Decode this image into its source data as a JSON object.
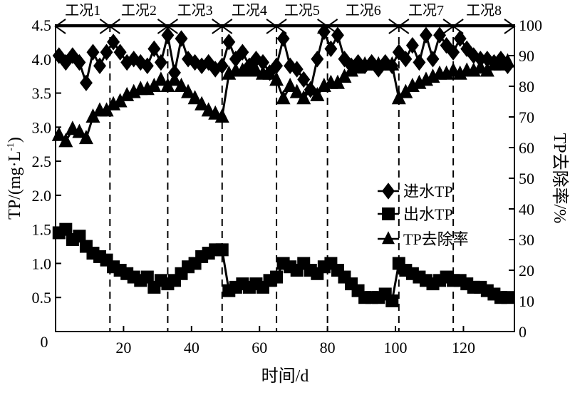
{
  "chart_data": {
    "type": "line",
    "xlabel": "时间/d",
    "ylabel_left": "TP/(mg·L",
    "ylabel_left_sup": "-1",
    "ylabel_left_end": ")",
    "ylabel_right": "TP去除率/%",
    "xlim": [
      0,
      135
    ],
    "ylim_left": [
      0,
      4.5
    ],
    "ylim_right": [
      0,
      100
    ],
    "x_ticks": [
      20,
      40,
      60,
      80,
      100,
      120
    ],
    "origin_label": "0",
    "y_left_ticks": [
      "0.5",
      "1.0",
      "1.5",
      "2.0",
      "2.5",
      "3.0",
      "3.5",
      "4.0",
      "4.5"
    ],
    "y_right_ticks": [
      "0",
      "10",
      "20",
      "30",
      "40",
      "50",
      "60",
      "70",
      "80",
      "90",
      "100"
    ],
    "grid": false,
    "legend_placement": "right-middle",
    "phase_dividers": [
      16,
      33,
      49,
      65,
      80,
      101,
      117
    ],
    "phases": [
      "工况1",
      "工况2",
      "工况3",
      "工况4",
      "工况5",
      "工况6",
      "工况7",
      "工况8"
    ],
    "x": [
      1,
      3,
      5,
      7,
      9,
      11,
      13,
      15,
      17,
      19,
      21,
      23,
      25,
      27,
      29,
      31,
      33,
      35,
      37,
      39,
      41,
      43,
      45,
      47,
      49,
      51,
      53,
      55,
      57,
      59,
      61,
      63,
      65,
      67,
      69,
      71,
      73,
      75,
      77,
      79,
      81,
      83,
      85,
      87,
      89,
      91,
      93,
      95,
      97,
      99,
      101,
      103,
      105,
      107,
      109,
      111,
      113,
      115,
      117,
      119,
      121,
      123,
      125,
      127,
      129,
      131,
      133
    ],
    "series": [
      {
        "name": "进水TP",
        "axis": "left",
        "marker": "diamond",
        "values": [
          4.05,
          3.95,
          4.05,
          3.95,
          3.65,
          4.1,
          3.9,
          4.1,
          4.25,
          4.1,
          3.95,
          4.0,
          3.95,
          3.9,
          4.15,
          3.95,
          4.35,
          3.8,
          4.3,
          4.0,
          3.95,
          3.9,
          3.95,
          3.85,
          3.9,
          4.25,
          4.0,
          4.1,
          3.9,
          4.0,
          3.95,
          3.8,
          3.9,
          4.3,
          3.9,
          3.85,
          3.7,
          3.55,
          4.0,
          4.4,
          4.15,
          4.35,
          4.0,
          3.9,
          3.95,
          3.9,
          3.95,
          3.85,
          3.95,
          3.9,
          4.1,
          4.0,
          4.2,
          3.95,
          4.35,
          4.0,
          4.35,
          4.2,
          4.1,
          4.3,
          4.15,
          4.05,
          4.0,
          4.0,
          3.95,
          4.0,
          3.9
        ]
      },
      {
        "name": "出水TP",
        "axis": "left",
        "marker": "square",
        "values": [
          1.45,
          1.5,
          1.35,
          1.4,
          1.25,
          1.15,
          1.1,
          1.05,
          0.95,
          0.9,
          0.85,
          0.8,
          0.75,
          0.8,
          0.65,
          0.75,
          0.7,
          0.75,
          0.85,
          0.95,
          1.0,
          1.1,
          1.15,
          1.2,
          1.2,
          0.6,
          0.65,
          0.7,
          0.65,
          0.7,
          0.65,
          0.75,
          0.8,
          1.0,
          0.95,
          0.9,
          1.0,
          0.9,
          0.85,
          0.95,
          1.0,
          0.9,
          0.8,
          0.7,
          0.6,
          0.5,
          0.5,
          0.5,
          0.55,
          0.45,
          1.0,
          0.9,
          0.85,
          0.8,
          0.75,
          0.7,
          0.75,
          0.8,
          0.75,
          0.75,
          0.7,
          0.65,
          0.65,
          0.6,
          0.55,
          0.5,
          0.5
        ]
      },
      {
        "name": "TP去除率",
        "axis": "right",
        "marker": "triangle",
        "values": [
          64,
          62,
          66,
          65,
          63,
          70,
          72,
          72,
          74,
          75,
          77,
          78,
          79,
          79,
          80,
          82,
          80,
          82,
          80,
          78,
          76,
          74,
          72,
          71,
          70,
          84,
          85,
          85,
          85,
          85,
          84,
          84,
          82,
          76,
          80,
          78,
          76,
          79,
          77,
          80,
          81,
          81,
          83,
          85,
          86,
          87,
          87,
          87,
          87,
          87,
          76,
          78,
          80,
          81,
          82,
          83,
          84,
          84,
          85,
          84,
          85,
          85,
          86,
          85,
          87,
          87,
          88
        ]
      }
    ]
  }
}
